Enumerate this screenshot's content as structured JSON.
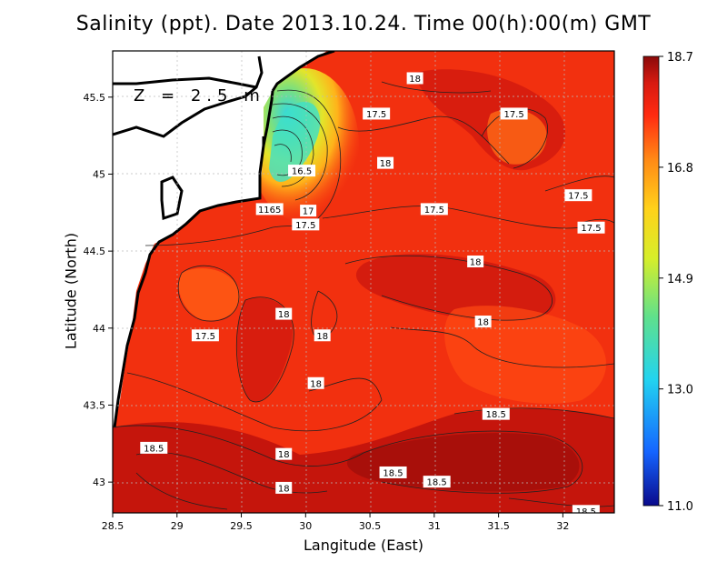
{
  "title": "Salinity (ppt). Date 2013.10.24. Time 00(h):00(m) GMT",
  "depth_label": "Z = 2.5 m",
  "x_axis": {
    "label": "Langitude (East)",
    "range": [
      28.5,
      32.4
    ],
    "ticks": [
      "28.5",
      "29",
      "29.5",
      "30",
      "30.5",
      "31",
      "31.5",
      "32"
    ]
  },
  "y_axis": {
    "label": "Latitude (North)",
    "range": [
      42.8,
      45.8
    ],
    "ticks": [
      "43",
      "43.5",
      "44",
      "44.5",
      "45",
      "45.5"
    ]
  },
  "colorbar": {
    "ticks": [
      "18.7",
      "16.8",
      "14.9",
      "13.0",
      "11.0"
    ],
    "min": 11.0,
    "max": 18.7,
    "colors": [
      "#0a0a8c",
      "#1565ff",
      "#22d3f0",
      "#5fe08c",
      "#d6ee2a",
      "#ffd21a",
      "#ff8a16",
      "#ff2a10",
      "#d81a10",
      "#8b0a0a"
    ]
  },
  "contour_labels": [
    {
      "text": "18",
      "lon": 30.85,
      "lat": 45.62
    },
    {
      "text": "17.5",
      "lon": 30.55,
      "lat": 45.39
    },
    {
      "text": "17.5",
      "lon": 31.62,
      "lat": 45.39
    },
    {
      "text": "18",
      "lon": 30.62,
      "lat": 45.07
    },
    {
      "text": "16.5",
      "lon": 29.97,
      "lat": 45.02
    },
    {
      "text": "17.5",
      "lon": 32.12,
      "lat": 44.86
    },
    {
      "text": "17.5",
      "lon": 31.0,
      "lat": 44.77
    },
    {
      "text": "1165",
      "lon": 29.72,
      "lat": 44.77
    },
    {
      "text": "17",
      "lon": 30.02,
      "lat": 44.76
    },
    {
      "text": "17.5",
      "lon": 30.0,
      "lat": 44.67
    },
    {
      "text": "17.5",
      "lon": 32.22,
      "lat": 44.65
    },
    {
      "text": "18",
      "lon": 31.32,
      "lat": 44.43
    },
    {
      "text": "18",
      "lon": 29.83,
      "lat": 44.09
    },
    {
      "text": "18",
      "lon": 31.38,
      "lat": 44.04
    },
    {
      "text": "17.5",
      "lon": 29.22,
      "lat": 43.95
    },
    {
      "text": "18",
      "lon": 30.13,
      "lat": 43.95
    },
    {
      "text": "18",
      "lon": 30.08,
      "lat": 43.64
    },
    {
      "text": "18.5",
      "lon": 31.48,
      "lat": 43.44
    },
    {
      "text": "18.5",
      "lon": 28.82,
      "lat": 43.22
    },
    {
      "text": "18",
      "lon": 29.83,
      "lat": 43.18
    },
    {
      "text": "18.5",
      "lon": 30.68,
      "lat": 43.06
    },
    {
      "text": "18.5",
      "lon": 31.02,
      "lat": 43.0
    },
    {
      "text": "18",
      "lon": 29.83,
      "lat": 42.96
    },
    {
      "text": "18.5",
      "lon": 32.18,
      "lat": 42.81
    }
  ]
}
